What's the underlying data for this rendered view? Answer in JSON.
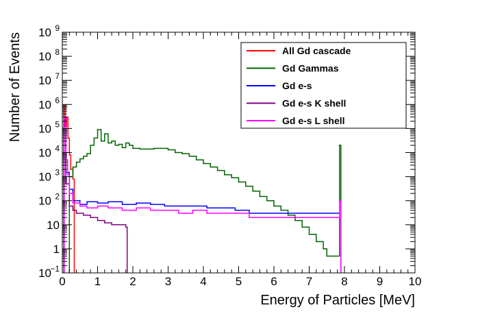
{
  "chart_data": {
    "type": "histogram",
    "xlabel": "Energy of Particles [MeV]",
    "ylabel": "Number of Events",
    "xlim": [
      0,
      10
    ],
    "ylim": [
      0.1,
      1000000000
    ],
    "yscale": "log",
    "x_ticks": [
      "0",
      "1",
      "2",
      "3",
      "4",
      "5",
      "6",
      "7",
      "8",
      "9",
      "10"
    ],
    "y_ticks": [
      {
        "base": "10",
        "exp": "−1",
        "value": 0.1
      },
      {
        "base": "1",
        "exp": "",
        "value": 1
      },
      {
        "base": "10",
        "exp": "",
        "value": 10
      },
      {
        "base": "10",
        "exp": "2",
        "value": 100
      },
      {
        "base": "10",
        "exp": "3",
        "value": 1000
      },
      {
        "base": "10",
        "exp": "4",
        "value": 10000
      },
      {
        "base": "10",
        "exp": "5",
        "value": 100000
      },
      {
        "base": "10",
        "exp": "6",
        "value": 1000000
      },
      {
        "base": "10",
        "exp": "7",
        "value": 10000000
      },
      {
        "base": "10",
        "exp": "8",
        "value": 100000000
      },
      {
        "base": "10",
        "exp": "9",
        "value": 1000000000
      }
    ],
    "legend_position": "top-right",
    "series": [
      {
        "name": "All Gd cascade",
        "color": "#ff0000",
        "points": [
          [
            0.04,
            900000
          ],
          [
            0.08,
            120000
          ],
          [
            0.12,
            300000
          ],
          [
            0.16,
            40000
          ],
          [
            0.2,
            8000
          ],
          [
            0.24,
            2000
          ],
          [
            0.3,
            800
          ]
        ]
      },
      {
        "name": "Gd Gammas",
        "color": "#006400",
        "points": [
          [
            0.2,
            1000
          ],
          [
            0.3,
            2500
          ],
          [
            0.4,
            4000
          ],
          [
            0.5,
            5500
          ],
          [
            0.6,
            7000
          ],
          [
            0.7,
            9000
          ],
          [
            0.8,
            20000
          ],
          [
            0.9,
            40000
          ],
          [
            1.0,
            90000
          ],
          [
            1.1,
            30000
          ],
          [
            1.2,
            60000
          ],
          [
            1.3,
            25000
          ],
          [
            1.4,
            30000
          ],
          [
            1.5,
            20000
          ],
          [
            1.6,
            22000
          ],
          [
            1.7,
            16000
          ],
          [
            1.8,
            25000
          ],
          [
            1.9,
            20000
          ],
          [
            2.0,
            15000
          ],
          [
            2.2,
            14000
          ],
          [
            2.4,
            14000
          ],
          [
            2.6,
            15000
          ],
          [
            2.8,
            15000
          ],
          [
            3.0,
            13000
          ],
          [
            3.2,
            10000
          ],
          [
            3.4,
            9000
          ],
          [
            3.6,
            7000
          ],
          [
            3.8,
            5000
          ],
          [
            4.0,
            3500
          ],
          [
            4.2,
            2500
          ],
          [
            4.4,
            1800
          ],
          [
            4.6,
            1200
          ],
          [
            4.8,
            900
          ],
          [
            5.0,
            600
          ],
          [
            5.2,
            400
          ],
          [
            5.4,
            250
          ],
          [
            5.6,
            150
          ],
          [
            5.8,
            100
          ],
          [
            6.0,
            60
          ],
          [
            6.2,
            40
          ],
          [
            6.4,
            25
          ],
          [
            6.6,
            15
          ],
          [
            6.8,
            8
          ],
          [
            7.0,
            4
          ],
          [
            7.2,
            2
          ],
          [
            7.4,
            1
          ],
          [
            7.5,
            0.5
          ],
          [
            7.86,
            20000
          ]
        ]
      },
      {
        "name": "Gd e-s",
        "color": "#0000ff",
        "points": [
          [
            0.05,
            300000
          ],
          [
            0.1,
            1500
          ],
          [
            0.2,
            300
          ],
          [
            0.3,
            100
          ],
          [
            0.5,
            70
          ],
          [
            0.7,
            90
          ],
          [
            1.0,
            80
          ],
          [
            1.3,
            90
          ],
          [
            1.7,
            70
          ],
          [
            2.1,
            80
          ],
          [
            2.5,
            70
          ],
          [
            2.9,
            60
          ],
          [
            3.3,
            60
          ],
          [
            3.7,
            60
          ],
          [
            4.1,
            50
          ],
          [
            4.5,
            50
          ],
          [
            4.9,
            40
          ],
          [
            5.3,
            30
          ],
          [
            7.86,
            100
          ]
        ]
      },
      {
        "name": "Gd e-s K shell",
        "color": "#800080",
        "points": [
          [
            0.05,
            200000
          ],
          [
            0.1,
            500
          ],
          [
            0.2,
            60
          ],
          [
            0.3,
            40
          ],
          [
            0.4,
            30
          ],
          [
            0.6,
            25
          ],
          [
            0.8,
            20
          ],
          [
            1.0,
            15
          ],
          [
            1.2,
            12
          ],
          [
            1.4,
            10
          ],
          [
            1.6,
            10
          ],
          [
            1.8,
            8
          ]
        ]
      },
      {
        "name": "Gd e-s L shell",
        "color": "#ff00ff",
        "points": [
          [
            0.05,
            300000
          ],
          [
            0.1,
            5000
          ],
          [
            0.15,
            1200
          ],
          [
            0.2,
            200
          ],
          [
            0.3,
            80
          ],
          [
            0.5,
            60
          ],
          [
            0.7,
            50
          ],
          [
            1.0,
            60
          ],
          [
            1.3,
            50
          ],
          [
            1.7,
            40
          ],
          [
            2.1,
            50
          ],
          [
            2.5,
            40
          ],
          [
            2.9,
            40
          ],
          [
            3.3,
            30
          ],
          [
            3.7,
            40
          ],
          [
            4.1,
            30
          ],
          [
            4.5,
            30
          ],
          [
            4.9,
            30
          ],
          [
            5.3,
            20
          ],
          [
            7.86,
            100
          ]
        ]
      }
    ]
  }
}
